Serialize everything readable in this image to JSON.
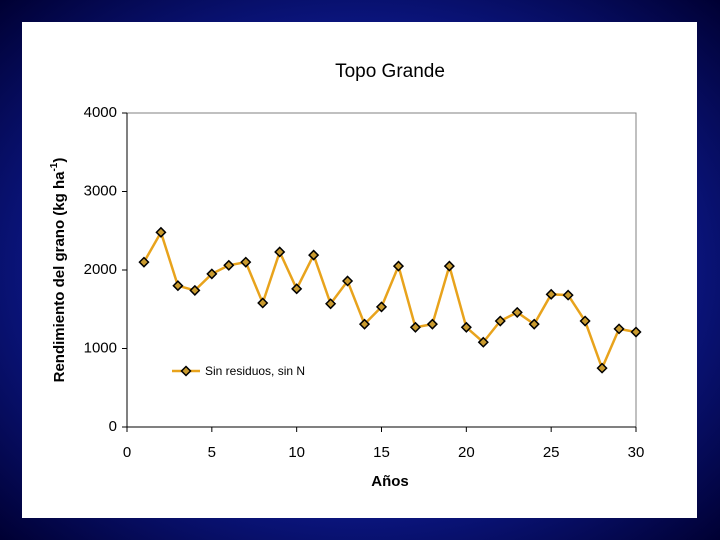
{
  "chart_data": {
    "type": "line",
    "title": "Topo Grande",
    "xlabel": "Años",
    "ylabel": {
      "text": "Rendimiento del grano (kg ha",
      "superscript": "-1",
      "suffix": ")"
    },
    "x": [
      1,
      2,
      3,
      4,
      5,
      6,
      7,
      8,
      9,
      10,
      11,
      12,
      13,
      14,
      15,
      16,
      17,
      18,
      19,
      20,
      21,
      22,
      23,
      24,
      25,
      26,
      27,
      28,
      29,
      30
    ],
    "series": [
      {
        "name": "Sin residuos, sin N",
        "color": "#e8a31c",
        "marker_color": "#c99a2e",
        "values": [
          2100,
          2480,
          1800,
          1740,
          1950,
          2060,
          2100,
          1580,
          2230,
          1760,
          2190,
          1570,
          1860,
          1310,
          1530,
          2050,
          1270,
          1310,
          2050,
          1270,
          1080,
          1350,
          1460,
          1310,
          1690,
          1680,
          1350,
          750,
          1250,
          1210
        ]
      }
    ],
    "xlim": [
      0,
      30
    ],
    "xticks": [
      0,
      5,
      10,
      15,
      20,
      25,
      30
    ],
    "ylim": [
      0,
      4000
    ],
    "yticks": [
      0,
      1000,
      2000,
      3000,
      4000
    ],
    "grid": false,
    "legend": "lower-left"
  }
}
